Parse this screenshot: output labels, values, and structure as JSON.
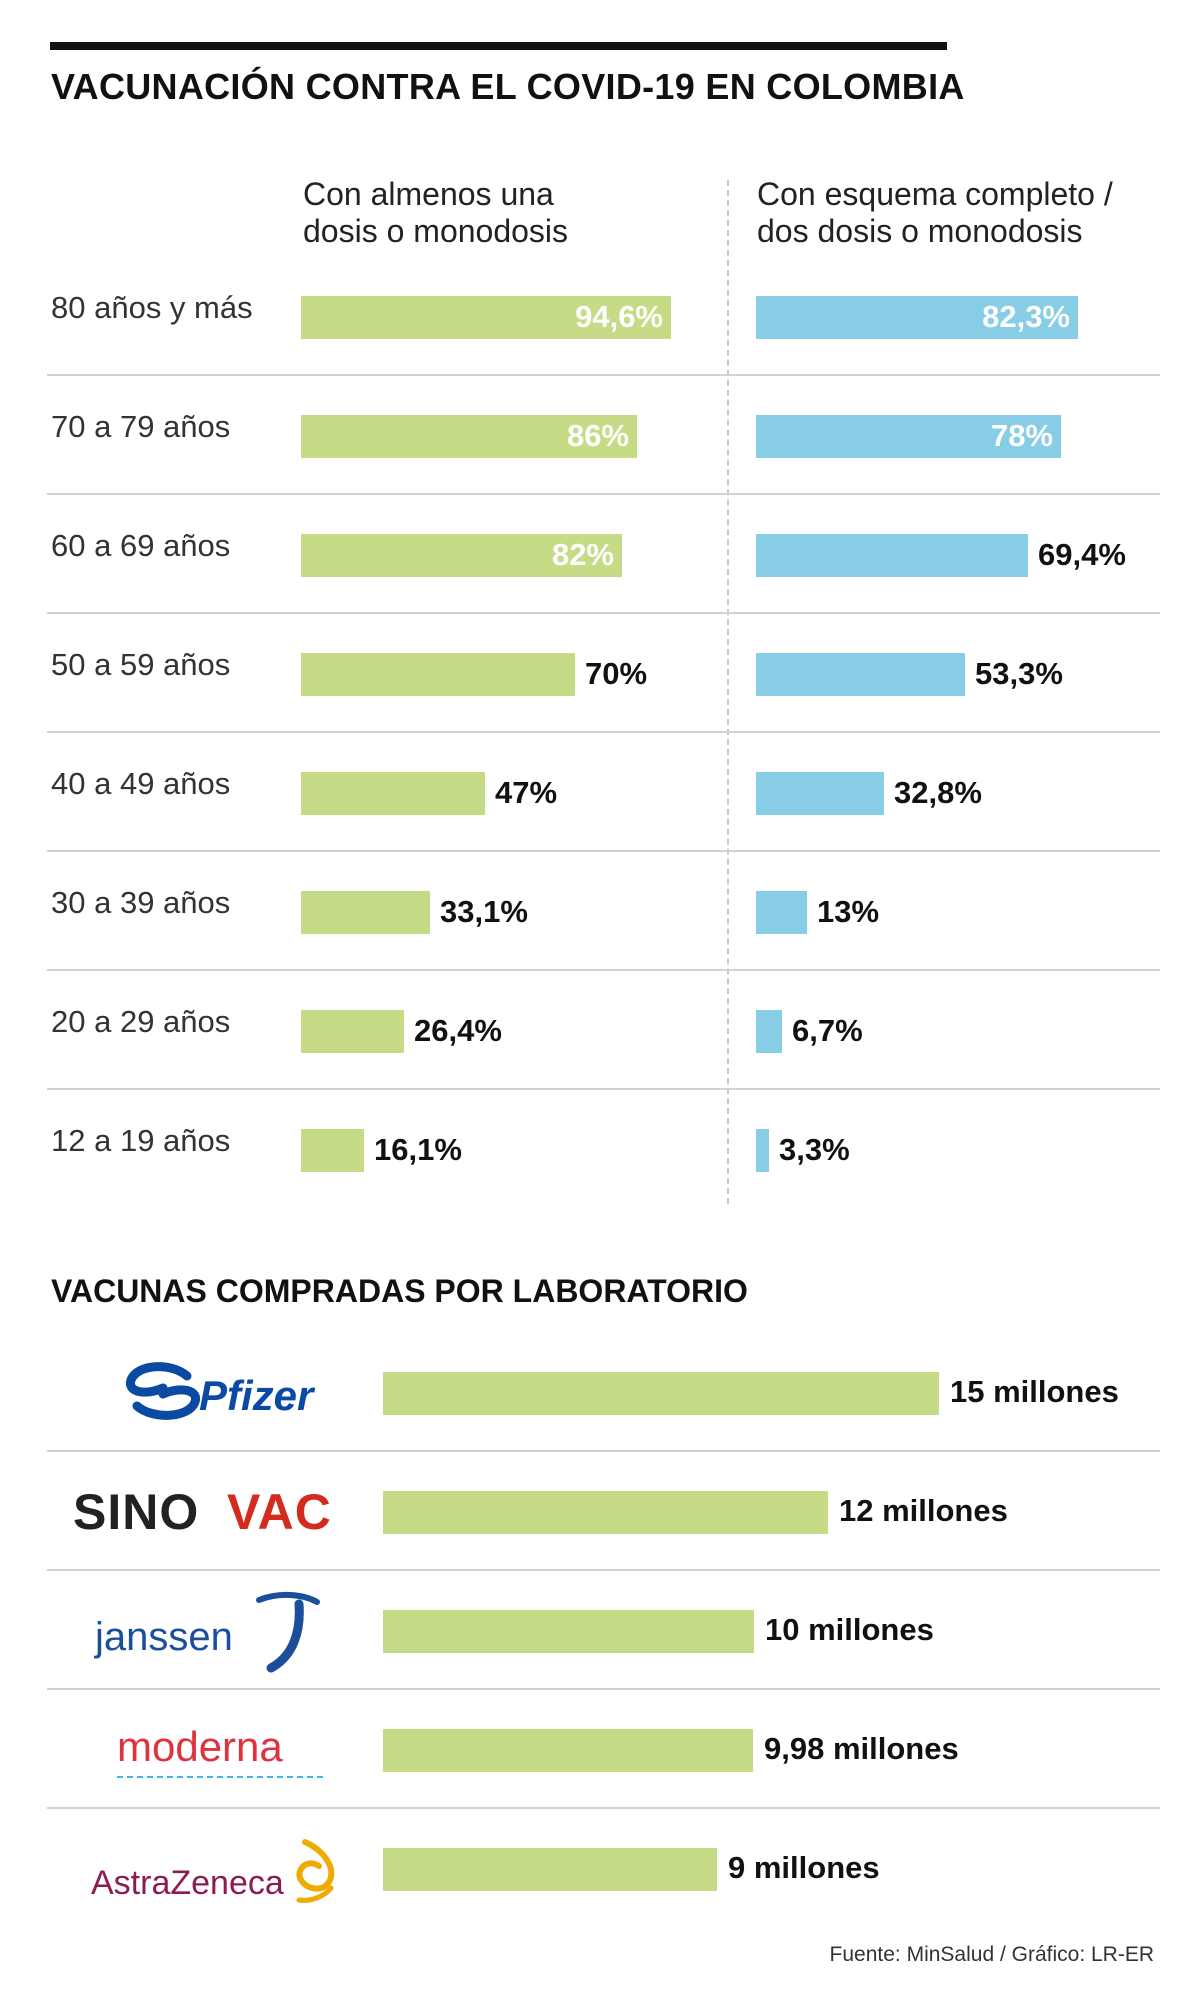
{
  "title": "VACUNACIÓN CONTRA EL COVID-19 EN COLOMBIA",
  "column_headers": [
    "Con almenos una\ndosis o monodosis",
    "Con esquema completo /\ndos dosis o monodosis"
  ],
  "chart_data": [
    {
      "type": "bar",
      "orientation": "horizontal",
      "categories": [
        "80 años y más",
        "70 a 79 años",
        "60 a 69 años",
        "50 a 59 años",
        "40 a 49 años",
        "30 a 39 años",
        "20 a 29 años",
        "12 a 19 años"
      ],
      "series": [
        {
          "name": "Con almenos una\ndosis o monodosis",
          "values": [
            94.6,
            86,
            82,
            70,
            47,
            33.1,
            26.4,
            16.1
          ],
          "labels": [
            "94,6%",
            "86%",
            "82%",
            "70%",
            "47%",
            "33,1%",
            "26,4%",
            "16,1%"
          ],
          "color": "#c6db86"
        },
        {
          "name": "Con esquema completo /\ndos dosis o monodosis",
          "values": [
            82.3,
            78,
            69.4,
            53.3,
            32.8,
            13,
            6.7,
            3.3
          ],
          "labels": [
            "82,3%",
            "78%",
            "69,4%",
            "53,3%",
            "32,8%",
            "13%",
            "6,7%",
            "3,3%"
          ],
          "color": "#86cde5"
        }
      ],
      "xlim": [
        0,
        100
      ],
      "legend": "column headers at top",
      "grid": false
    },
    {
      "type": "bar",
      "orientation": "horizontal",
      "title": "VACUNAS COMPRADAS POR LABORATORIO",
      "categories": [
        "Pfizer",
        "SINOVAC",
        "janssen",
        "moderna",
        "AstraZeneca"
      ],
      "values": [
        15,
        12,
        10,
        9.98,
        9
      ],
      "labels": [
        "15 millones",
        "12 millones",
        "10 millones",
        "9,98 millones",
        "9 millones"
      ],
      "color": "#c6db86",
      "category_display": "logos",
      "grid": false
    }
  ],
  "logos": {
    "pfizer": {
      "icon": "pfizer-logo",
      "text": "Pfizer",
      "color": "#0b4aa2"
    },
    "sinovac": {
      "icon": "sinovac-logo",
      "text_a": "SINO",
      "text_b": "VAC",
      "color_a": "#222222",
      "color_b": "#d52b1e"
    },
    "janssen": {
      "icon": "janssen-logo",
      "text": "janssen",
      "color": "#1b4f9c"
    },
    "moderna": {
      "icon": "moderna-logo",
      "text": "moderna",
      "color": "#e0323c",
      "underline_color": "#3fb7e6"
    },
    "astrazeneca": {
      "icon": "astrazeneca-logo",
      "text": "AstraZeneca",
      "color": "#8a1d53",
      "symbol_color": "#f0ab00"
    }
  },
  "source": "Fuente: MinSalud / Gráfico: LR-ER"
}
